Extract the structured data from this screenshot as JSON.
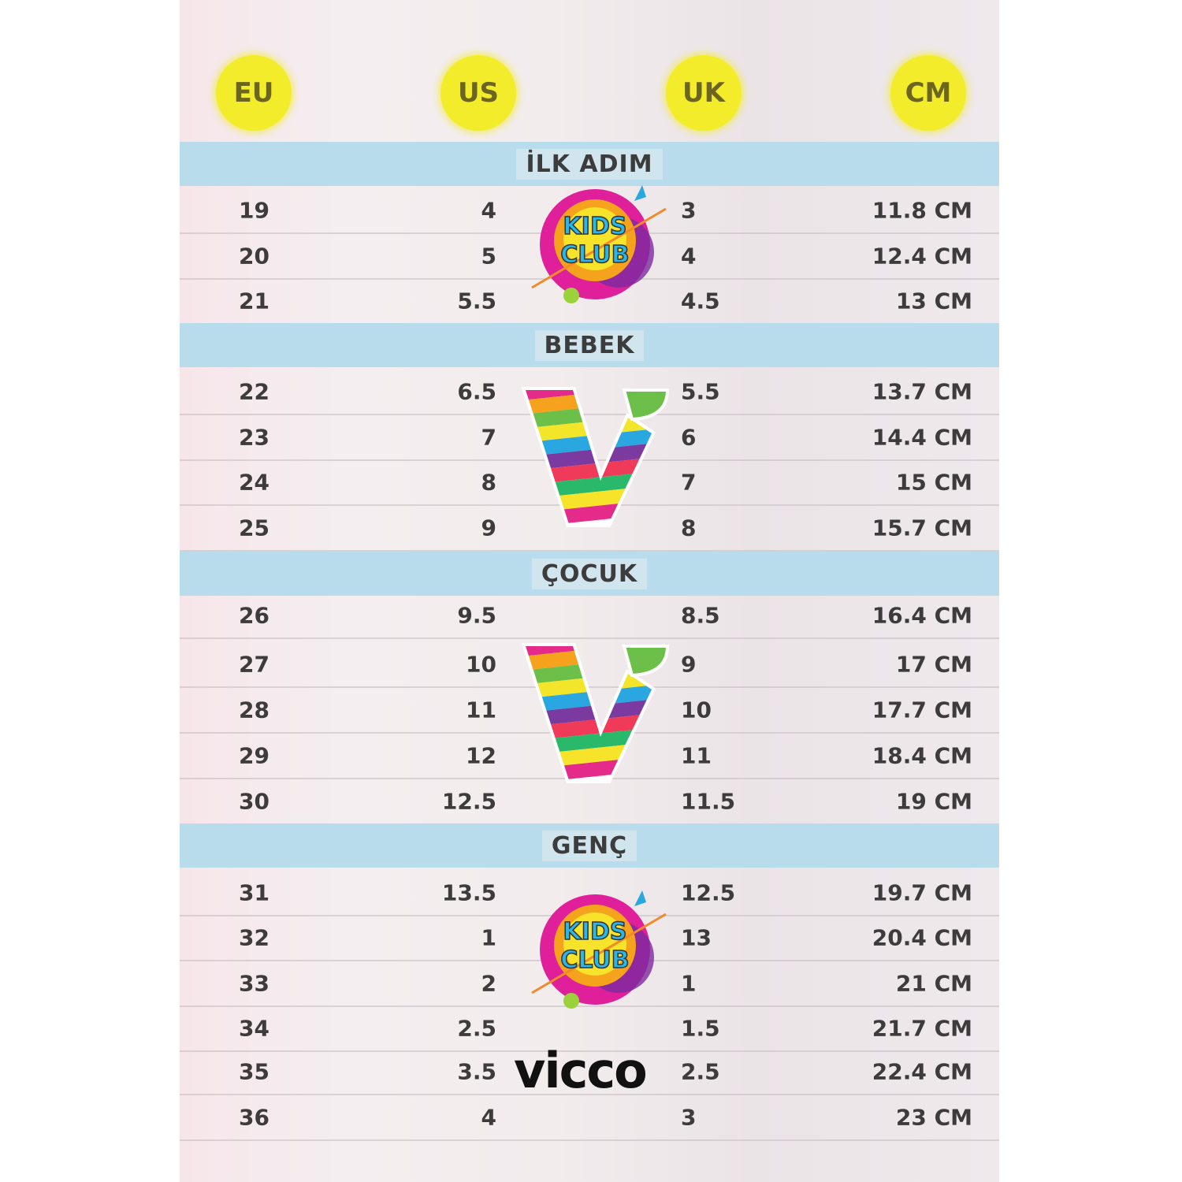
{
  "headers": [
    {
      "label": "EU"
    },
    {
      "label": "US"
    },
    {
      "label": "UK"
    },
    {
      "label": "CM"
    }
  ],
  "header_color": "#f2ec2a",
  "band_color": "#b9dcec",
  "sections": [
    {
      "title": "İLK ADIM",
      "rows": [
        [
          "19",
          "4",
          "3",
          "11.8 CM"
        ],
        [
          "20",
          "5",
          "4",
          "12.4 CM"
        ],
        [
          "21",
          "5.5",
          "4.5",
          "13 CM"
        ]
      ]
    },
    {
      "title": "BEBEK",
      "rows": [
        [
          "22",
          "6.5",
          "5.5",
          "13.7 CM"
        ],
        [
          "23",
          "7",
          "6",
          "14.4 CM"
        ],
        [
          "24",
          "8",
          "7",
          "15 CM"
        ],
        [
          "25",
          "9",
          "8",
          "15.7 CM"
        ]
      ]
    },
    {
      "title": "ÇOCUK",
      "rows": [
        [
          "26",
          "9.5",
          "8.5",
          "16.4 CM"
        ],
        [
          "27",
          "10",
          "9",
          "17 CM"
        ],
        [
          "28",
          "11",
          "10",
          "17.7 CM"
        ],
        [
          "29",
          "12",
          "11",
          "18.4 CM"
        ],
        [
          "30",
          "12.5",
          "11.5",
          "19 CM"
        ]
      ]
    },
    {
      "title": "GENÇ",
      "rows": [
        [
          "31",
          "13.5",
          "12.5",
          "19.7 CM"
        ],
        [
          "32",
          "1",
          "13",
          "20.4 CM"
        ],
        [
          "33",
          "2",
          "1",
          "21 CM"
        ],
        [
          "34",
          "2.5",
          "1.5",
          "21.7 CM"
        ],
        [
          "35",
          "3.5",
          "2.5",
          "22.4 CM"
        ],
        [
          "36",
          "4",
          "3",
          "23 CM"
        ]
      ]
    }
  ],
  "logos": {
    "kids_club": "KIDS CLUB",
    "brand": "vicco"
  }
}
